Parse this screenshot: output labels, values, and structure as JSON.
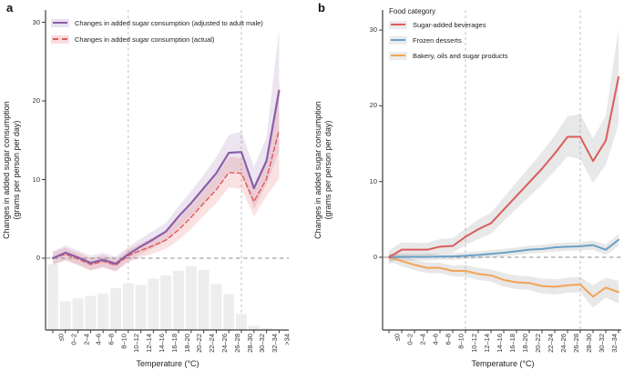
{
  "panel_letters": {
    "a": "a",
    "b": "b"
  },
  "axis": {
    "y_title_line1": "Changes in added sugar consumption",
    "y_title_line2": "(grams per person per day)",
    "x_title": "Temperature (°C)"
  },
  "legend_a": {
    "items": [
      {
        "label": "Changes in added sugar consumption (adjusted to adult male)",
        "color": "#8b5fa7",
        "band": "#e9e1f1",
        "dashed": false
      },
      {
        "label": "Changes in added sugar consumption (actual)",
        "color": "#e35d5e",
        "band": "#f9dcde",
        "dashed": true
      }
    ]
  },
  "legend_b": {
    "title": "Food category",
    "items": [
      {
        "label": "Sugar-added beverages",
        "color": "#db5c5c",
        "band": "#ececec",
        "dashed": false
      },
      {
        "label": "Frozen desserts",
        "color": "#6ba0c6",
        "band": "#ececec",
        "dashed": false
      },
      {
        "label": "Bakery, oils and sugar products",
        "color": "#f2a356",
        "band": "#ececec",
        "dashed": false
      }
    ]
  },
  "colors": {
    "axis_line": "#3c3c3c",
    "zero_dash": "#8c8c8c",
    "vertical_dash": "#c2c2c2",
    "histogram": "#ededed",
    "tick_text": "#333333"
  },
  "chart_data": [
    {
      "type": "line",
      "panel": "a",
      "xlabel": "Temperature (°C)",
      "ylabel": "Changes in added sugar consumption (grams per person per day)",
      "categories": [
        "≤0",
        "0–2",
        "2–4",
        "4–6",
        "6–8",
        "8–10",
        "10–12",
        "12–14",
        "14–16",
        "16–18",
        "18–20",
        "20–22",
        "22–24",
        "24–26",
        "26–28",
        "28–30",
        "30–32",
        "32–34",
        ">34"
      ],
      "y_ticks": [
        0,
        10,
        20,
        30
      ],
      "ylim": [
        -9.5,
        31.6
      ],
      "grid": false,
      "legend_position": "top-left",
      "reference_lines": {
        "horizontal_y": 0,
        "vertical_categories": [
          "10–12",
          "28–30"
        ]
      },
      "series": [
        {
          "name": "Changes in added sugar consumption (adjusted to adult male)",
          "color": "#8b5fa7",
          "dashed": false,
          "band_color": "rgba(139,95,167,0.16)",
          "line_width": 2.2,
          "values": [
            0,
            0.7,
            0.1,
            -0.6,
            -0.2,
            -0.7,
            0.5,
            1.5,
            2.4,
            3.4,
            5.3,
            7.0,
            8.9,
            10.8,
            13.4,
            13.5,
            8.9,
            12.4,
            21.3
          ],
          "upper": [
            0.9,
            1.6,
            1.0,
            0.3,
            0.7,
            0.2,
            1.4,
            2.5,
            3.5,
            4.5,
            6.6,
            8.5,
            10.6,
            12.8,
            15.7,
            16.1,
            11.6,
            15.4,
            29.2
          ],
          "lower": [
            -0.9,
            -0.2,
            -0.8,
            -1.5,
            -1.1,
            -1.6,
            -0.4,
            0.5,
            1.3,
            2.2,
            3.9,
            5.4,
            7.1,
            8.9,
            11.1,
            10.9,
            6.2,
            9.4,
            13.6
          ]
        },
        {
          "name": "Changes in added sugar consumption (actual)",
          "color": "#e35d5e",
          "dashed": true,
          "band_color": "rgba(227,93,94,0.18)",
          "line_width": 1.5,
          "values": [
            0,
            0.5,
            -0.1,
            -0.8,
            -0.4,
            -0.9,
            0.3,
            1.0,
            1.6,
            2.3,
            3.6,
            5.2,
            7.0,
            8.7,
            10.9,
            10.8,
            7.2,
            10.1,
            16.3
          ],
          "upper": [
            0.8,
            1.3,
            0.7,
            0.0,
            0.4,
            -0.1,
            1.1,
            1.9,
            2.7,
            3.5,
            5.0,
            6.7,
            8.6,
            10.5,
            12.9,
            12.7,
            9.1,
            12.3,
            22.5
          ],
          "lower": [
            -0.8,
            -0.3,
            -0.9,
            -1.6,
            -1.2,
            -1.7,
            -0.5,
            0.1,
            0.6,
            1.2,
            2.3,
            3.7,
            5.4,
            7.0,
            9.0,
            8.8,
            5.3,
            7.9,
            10.1
          ]
        }
      ],
      "histogram": {
        "color": "#ededed",
        "bar_tops": [
          -0.8,
          -5.5,
          -5.1,
          -4.8,
          -4.5,
          -3.8,
          -3.2,
          -3.4,
          -2.6,
          -2.2,
          -1.6,
          -1.0,
          -1.5,
          -3.3,
          -4.6,
          -7.1,
          -8.6,
          -8.9,
          -9.45
        ]
      }
    },
    {
      "type": "line",
      "panel": "b",
      "xlabel": "Temperature (°C)",
      "ylabel": "Changes in added sugar consumption (grams per person per day)",
      "legend_title": "Food category",
      "categories": [
        "≤0",
        "0–2",
        "2–4",
        "4–6",
        "6–8",
        "8–10",
        "10–12",
        "12–14",
        "14–16",
        "16–18",
        "18–20",
        "20–22",
        "22–24",
        "24–26",
        "26–28",
        "28–30",
        "30–32",
        "32–34",
        ">34"
      ],
      "y_ticks": [
        0,
        10,
        20,
        30
      ],
      "ylim": [
        -9.6,
        32.5
      ],
      "grid": false,
      "legend_position": "top-left",
      "reference_lines": {
        "horizontal_y": 0,
        "vertical_categories": [
          "10–12",
          "28–30"
        ]
      },
      "series": [
        {
          "name": "Sugar-added beverages",
          "color": "#db5c5c",
          "dashed": false,
          "band_color": "rgba(130,130,130,0.18)",
          "line_width": 2,
          "values": [
            0,
            1.0,
            1.0,
            1.0,
            1.4,
            1.5,
            2.7,
            3.7,
            4.5,
            6.3,
            8.1,
            9.9,
            11.7,
            13.7,
            15.9,
            15.9,
            12.7,
            15.4,
            23.8
          ],
          "upper": [
            0.9,
            2.0,
            1.9,
            1.9,
            2.4,
            2.5,
            3.8,
            5.0,
            5.9,
            7.9,
            9.9,
            11.9,
            13.9,
            16.1,
            18.6,
            18.9,
            15.7,
            18.7,
            30.2
          ],
          "lower": [
            -0.9,
            0.1,
            0.1,
            0.1,
            0.5,
            0.6,
            1.6,
            2.4,
            3.1,
            4.8,
            6.4,
            8.0,
            9.6,
            11.4,
            13.3,
            13.0,
            9.8,
            12.2,
            17.5
          ]
        },
        {
          "name": "Frozen desserts",
          "color": "#6ba0c6",
          "dashed": false,
          "band_color": "rgba(130,130,130,0.18)",
          "line_width": 2,
          "values": [
            0,
            0.05,
            0.05,
            0.05,
            0.1,
            0.1,
            0.2,
            0.3,
            0.45,
            0.6,
            0.8,
            1.0,
            1.1,
            1.3,
            1.4,
            1.45,
            1.6,
            1.0,
            2.3
          ],
          "upper": [
            0.4,
            0.5,
            0.5,
            0.5,
            0.5,
            0.55,
            0.65,
            0.8,
            0.95,
            1.1,
            1.3,
            1.5,
            1.65,
            1.85,
            1.95,
            2.0,
            2.2,
            1.7,
            3.1
          ],
          "lower": [
            -0.4,
            -0.4,
            -0.4,
            -0.4,
            -0.35,
            -0.35,
            -0.25,
            -0.2,
            -0.05,
            0.1,
            0.3,
            0.5,
            0.6,
            0.75,
            0.85,
            0.9,
            1.0,
            0.3,
            1.5
          ]
        },
        {
          "name": "Bakery, oils and sugar products",
          "color": "#f2a356",
          "dashed": false,
          "band_color": "rgba(130,130,130,0.18)",
          "line_width": 2,
          "values": [
            0,
            -0.5,
            -1.0,
            -1.4,
            -1.4,
            -1.8,
            -1.8,
            -2.2,
            -2.4,
            -3.0,
            -3.3,
            -3.4,
            -3.8,
            -3.9,
            -3.7,
            -3.6,
            -5.2,
            -4.0,
            -4.6
          ],
          "upper": [
            0.5,
            0.2,
            -0.3,
            -0.7,
            -0.7,
            -1.1,
            -1.0,
            -1.4,
            -1.6,
            -2.1,
            -2.4,
            -2.5,
            -2.8,
            -2.9,
            -2.7,
            -2.6,
            -3.7,
            -2.7,
            -3.1
          ],
          "lower": [
            -0.5,
            -1.2,
            -1.7,
            -2.1,
            -2.1,
            -2.5,
            -2.6,
            -3.0,
            -3.2,
            -3.9,
            -4.2,
            -4.3,
            -4.8,
            -4.9,
            -4.7,
            -4.6,
            -6.7,
            -5.3,
            -6.1
          ]
        }
      ]
    }
  ]
}
